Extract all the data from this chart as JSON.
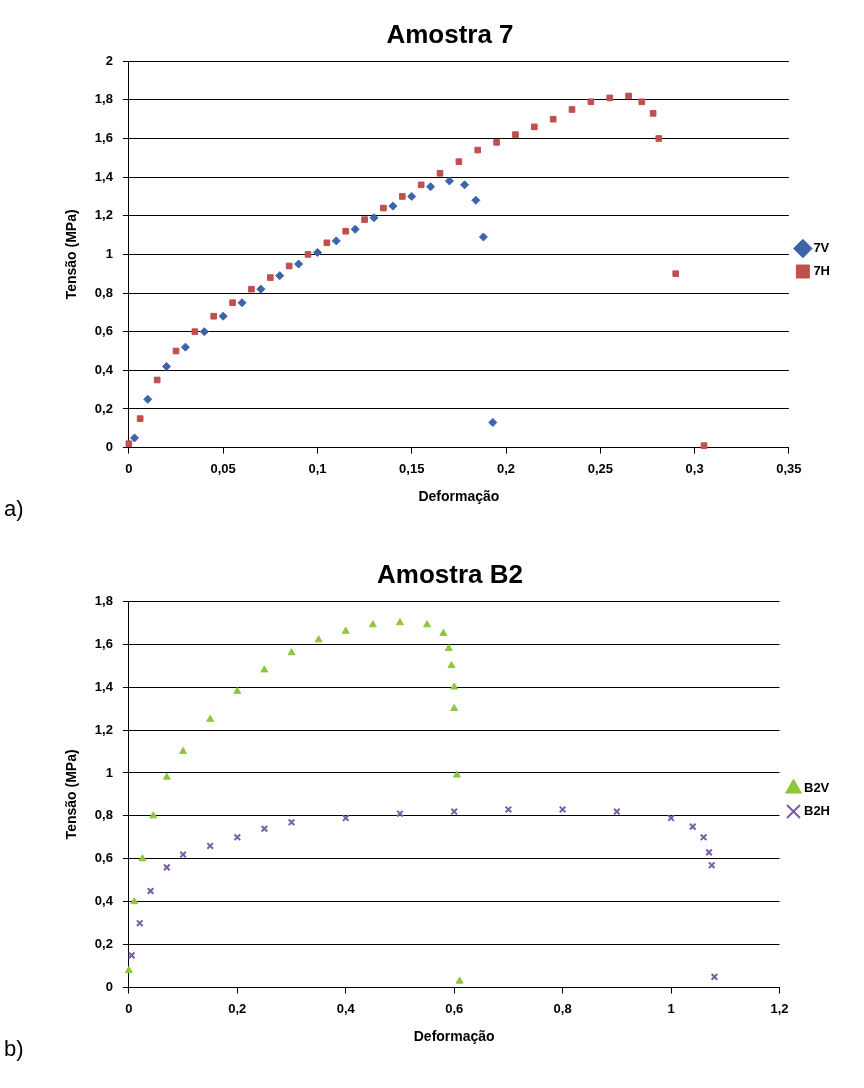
{
  "chart_data": [
    {
      "type": "scatter",
      "title": "Amostra 7",
      "xlabel": "Deformação",
      "ylabel": "Tensão (MPa)",
      "annotations": [
        "a)"
      ],
      "legend": "right",
      "grid": "y",
      "xlim": [
        0,
        0.35
      ],
      "xticks": [
        {
          "value": 0,
          "label": "0"
        },
        {
          "value": 0.05,
          "label": "0,05"
        },
        {
          "value": 0.1,
          "label": "0,1"
        },
        {
          "value": 0.15,
          "label": "0,15"
        },
        {
          "value": 0.2,
          "label": "0,2"
        },
        {
          "value": 0.25,
          "label": "0,25"
        },
        {
          "value": 0.3,
          "label": "0,3"
        },
        {
          "value": 0.35,
          "label": "0,35"
        }
      ],
      "ylim": [
        0,
        2
      ],
      "yticks": [
        {
          "value": 0,
          "label": "0"
        },
        {
          "value": 0.2,
          "label": "0,2"
        },
        {
          "value": 0.4,
          "label": "0,4"
        },
        {
          "value": 0.6,
          "label": "0,6"
        },
        {
          "value": 0.8,
          "label": "0,8"
        },
        {
          "value": 1,
          "label": "1"
        },
        {
          "value": 1.2,
          "label": "1,2"
        },
        {
          "value": 1.4,
          "label": "1,4"
        },
        {
          "value": 1.6,
          "label": "1,6"
        },
        {
          "value": 1.8,
          "label": "1,8"
        },
        {
          "value": 2,
          "label": "2"
        }
      ],
      "series": [
        {
          "name": "7V",
          "color": "#3d64a8",
          "marker": "diamond",
          "x": [
            0.003,
            0.01,
            0.02,
            0.03,
            0.04,
            0.05,
            0.06,
            0.07,
            0.08,
            0.09,
            0.1,
            0.11,
            0.12,
            0.13,
            0.14,
            0.15,
            0.16,
            0.17,
            0.178,
            0.184,
            0.188,
            0.193
          ],
          "values": [
            0.05,
            0.25,
            0.42,
            0.52,
            0.6,
            0.68,
            0.75,
            0.82,
            0.89,
            0.95,
            1.01,
            1.07,
            1.13,
            1.19,
            1.25,
            1.3,
            1.35,
            1.38,
            1.36,
            1.28,
            1.09,
            0.13
          ]
        },
        {
          "name": "7H",
          "color": "#c0504d",
          "marker": "square",
          "x": [
            0,
            0.006,
            0.015,
            0.025,
            0.035,
            0.045,
            0.055,
            0.065,
            0.075,
            0.085,
            0.095,
            0.105,
            0.115,
            0.125,
            0.135,
            0.145,
            0.155,
            0.165,
            0.175,
            0.185,
            0.195,
            0.205,
            0.215,
            0.225,
            0.235,
            0.245,
            0.255,
            0.265,
            0.272,
            0.278,
            0.281,
            0.29,
            0.305
          ],
          "values": [
            0.02,
            0.15,
            0.35,
            0.5,
            0.6,
            0.68,
            0.75,
            0.82,
            0.88,
            0.94,
            1.0,
            1.06,
            1.12,
            1.18,
            1.24,
            1.3,
            1.36,
            1.42,
            1.48,
            1.54,
            1.58,
            1.62,
            1.66,
            1.7,
            1.75,
            1.79,
            1.81,
            1.82,
            1.79,
            1.73,
            1.6,
            0.9,
            0.01
          ]
        }
      ]
    },
    {
      "type": "scatter",
      "title": "Amostra B2",
      "xlabel": "Deformação",
      "ylabel": "Tensão (MPa)",
      "annotations": [
        "b)"
      ],
      "legend": "right",
      "grid": "y",
      "xlim": [
        0,
        1.2
      ],
      "xticks": [
        {
          "value": 0,
          "label": "0"
        },
        {
          "value": 0.2,
          "label": "0,2"
        },
        {
          "value": 0.4,
          "label": "0,4"
        },
        {
          "value": 0.6,
          "label": "0,6"
        },
        {
          "value": 0.8,
          "label": "0,8"
        },
        {
          "value": 1,
          "label": "1"
        },
        {
          "value": 1.2,
          "label": "1,2"
        }
      ],
      "ylim": [
        0,
        1.8
      ],
      "yticks": [
        {
          "value": 0,
          "label": "0"
        },
        {
          "value": 0.2,
          "label": "0,2"
        },
        {
          "value": 0.4,
          "label": "0,4"
        },
        {
          "value": 0.6,
          "label": "0,6"
        },
        {
          "value": 0.8,
          "label": "0,8"
        },
        {
          "value": 1,
          "label": "1"
        },
        {
          "value": 1.2,
          "label": "1,2"
        },
        {
          "value": 1.4,
          "label": "1,4"
        },
        {
          "value": 1.6,
          "label": "1,6"
        },
        {
          "value": 1.8,
          "label": "1,8"
        }
      ],
      "series": [
        {
          "name": "B2V",
          "color": "#8dc63f",
          "marker": "triangle",
          "x": [
            0,
            0.01,
            0.025,
            0.045,
            0.07,
            0.1,
            0.15,
            0.2,
            0.25,
            0.3,
            0.35,
            0.4,
            0.45,
            0.5,
            0.55,
            0.58,
            0.59,
            0.595,
            0.6,
            0.6,
            0.605,
            0.61
          ],
          "values": [
            0.08,
            0.4,
            0.6,
            0.8,
            0.98,
            1.1,
            1.25,
            1.38,
            1.48,
            1.56,
            1.62,
            1.66,
            1.69,
            1.7,
            1.69,
            1.65,
            1.58,
            1.5,
            1.4,
            1.3,
            0.99,
            0.03
          ]
        },
        {
          "name": "B2H",
          "color": "#7b5ca8",
          "marker": "cross",
          "x": [
            0.005,
            0.02,
            0.04,
            0.07,
            0.1,
            0.15,
            0.2,
            0.25,
            0.3,
            0.4,
            0.5,
            0.6,
            0.7,
            0.8,
            0.9,
            1.0,
            1.04,
            1.06,
            1.07,
            1.075,
            1.08
          ],
          "values": [
            0.15,
            0.3,
            0.45,
            0.56,
            0.62,
            0.66,
            0.7,
            0.74,
            0.77,
            0.79,
            0.81,
            0.82,
            0.83,
            0.83,
            0.82,
            0.79,
            0.75,
            0.7,
            0.63,
            0.57,
            0.05
          ]
        }
      ]
    }
  ]
}
